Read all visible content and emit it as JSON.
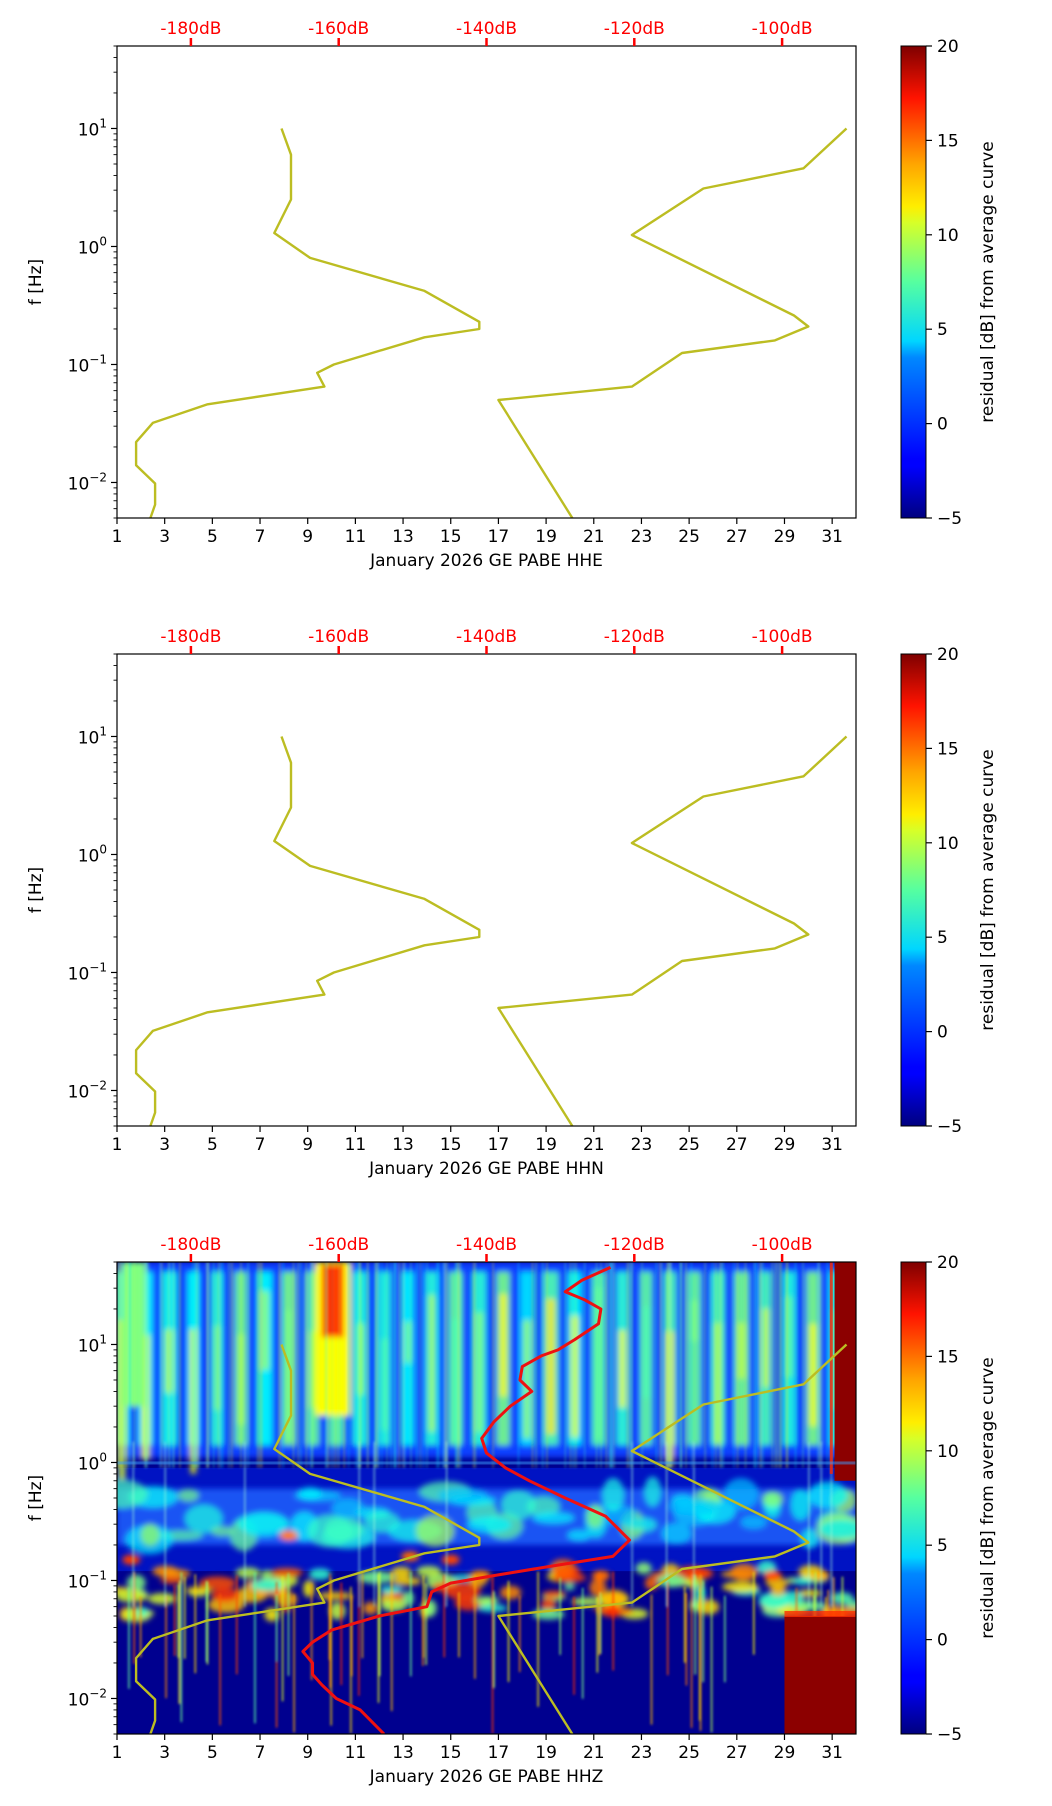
{
  "chart_data": [
    {
      "type": "line",
      "id": "hhe",
      "xlabel": "January 2026 GE PABE  HHE",
      "ylabel": "f [Hz]",
      "xlim": [
        1,
        32
      ],
      "ylim": [
        0.005,
        50
      ],
      "yscale": "log",
      "x_ticks": [
        "1",
        "3",
        "5",
        "7",
        "9",
        "11",
        "13",
        "15",
        "17",
        "19",
        "21",
        "23",
        "25",
        "27",
        "29",
        "31"
      ],
      "y_ticks": [
        {
          "mant": "10",
          "exp": "1",
          "v": 10
        },
        {
          "mant": "10",
          "exp": "0",
          "v": 1
        },
        {
          "mant": "10",
          "exp": "−1",
          "v": 0.1
        },
        {
          "mant": "10",
          "exp": "−2",
          "v": 0.01
        }
      ],
      "top_axis": {
        "color": "#ff0000",
        "ticks": [
          {
            "label": "-180dB",
            "x": 4.1
          },
          {
            "label": "-160dB",
            "x": 10.3
          },
          {
            "label": "-140dB",
            "x": 16.5
          },
          {
            "label": "-120dB",
            "x": 22.7
          },
          {
            "label": "-100dB",
            "x": 28.9
          }
        ]
      },
      "spectrogram": false,
      "colorbar": {
        "label": "residual [dB] from average curve",
        "range": [
          -5,
          20
        ],
        "ticks": [
          "20",
          "15",
          "10",
          "5",
          "0",
          "−5"
        ],
        "colormap": "jet"
      },
      "series": [
        {
          "color": "#bcbd22",
          "points": [
            [
              7.9,
              10
            ],
            [
              8.3,
              6
            ],
            [
              8.3,
              2.5
            ],
            [
              7.6,
              1.3
            ],
            [
              9.1,
              0.8
            ],
            [
              13.9,
              0.42
            ],
            [
              16.2,
              0.23
            ],
            [
              16.2,
              0.2
            ],
            [
              13.9,
              0.17
            ],
            [
              10.1,
              0.1
            ],
            [
              9.4,
              0.085
            ],
            [
              9.7,
              0.065
            ],
            [
              4.8,
              0.046
            ],
            [
              2.5,
              0.032
            ],
            [
              1.8,
              0.022
            ],
            [
              1.8,
              0.014
            ],
            [
              2.6,
              0.0098
            ],
            [
              2.6,
              0.0065
            ],
            [
              2.4,
              0.005
            ]
          ]
        },
        {
          "color": "#bcbd22",
          "points": [
            [
              31.6,
              10
            ],
            [
              29.8,
              4.6
            ],
            [
              25.6,
              3.1
            ],
            [
              22.6,
              1.25
            ],
            [
              29.4,
              0.26
            ],
            [
              30,
              0.21
            ],
            [
              28.6,
              0.16
            ],
            [
              24.7,
              0.125
            ],
            [
              22.6,
              0.065
            ],
            [
              17,
              0.05
            ],
            [
              20.1,
              0.005
            ]
          ]
        }
      ]
    },
    {
      "type": "line",
      "id": "hhn",
      "xlabel": "January 2026 GE PABE  HHN",
      "ylabel": "f [Hz]",
      "xlim": [
        1,
        32
      ],
      "ylim": [
        0.005,
        50
      ],
      "yscale": "log",
      "x_ticks": [
        "1",
        "3",
        "5",
        "7",
        "9",
        "11",
        "13",
        "15",
        "17",
        "19",
        "21",
        "23",
        "25",
        "27",
        "29",
        "31"
      ],
      "y_ticks": [
        {
          "mant": "10",
          "exp": "1",
          "v": 10
        },
        {
          "mant": "10",
          "exp": "0",
          "v": 1
        },
        {
          "mant": "10",
          "exp": "−1",
          "v": 0.1
        },
        {
          "mant": "10",
          "exp": "−2",
          "v": 0.01
        }
      ],
      "top_axis": {
        "color": "#ff0000",
        "ticks": [
          {
            "label": "-180dB",
            "x": 4.1
          },
          {
            "label": "-160dB",
            "x": 10.3
          },
          {
            "label": "-140dB",
            "x": 16.5
          },
          {
            "label": "-120dB",
            "x": 22.7
          },
          {
            "label": "-100dB",
            "x": 28.9
          }
        ]
      },
      "spectrogram": false,
      "colorbar": {
        "label": "residual [dB] from average curve",
        "range": [
          -5,
          20
        ],
        "ticks": [
          "20",
          "15",
          "10",
          "5",
          "0",
          "−5"
        ],
        "colormap": "jet"
      },
      "series": [
        {
          "color": "#bcbd22",
          "points": [
            [
              7.9,
              10
            ],
            [
              8.3,
              6
            ],
            [
              8.3,
              2.5
            ],
            [
              7.6,
              1.3
            ],
            [
              9.1,
              0.8
            ],
            [
              13.9,
              0.42
            ],
            [
              16.2,
              0.23
            ],
            [
              16.2,
              0.2
            ],
            [
              13.9,
              0.17
            ],
            [
              10.1,
              0.1
            ],
            [
              9.4,
              0.085
            ],
            [
              9.7,
              0.065
            ],
            [
              4.8,
              0.046
            ],
            [
              2.5,
              0.032
            ],
            [
              1.8,
              0.022
            ],
            [
              1.8,
              0.014
            ],
            [
              2.6,
              0.0098
            ],
            [
              2.6,
              0.0065
            ],
            [
              2.4,
              0.005
            ]
          ]
        },
        {
          "color": "#bcbd22",
          "points": [
            [
              31.6,
              10
            ],
            [
              29.8,
              4.6
            ],
            [
              25.6,
              3.1
            ],
            [
              22.6,
              1.25
            ],
            [
              29.4,
              0.26
            ],
            [
              30,
              0.21
            ],
            [
              28.6,
              0.16
            ],
            [
              24.7,
              0.125
            ],
            [
              22.6,
              0.065
            ],
            [
              17,
              0.05
            ],
            [
              20.1,
              0.005
            ]
          ]
        }
      ]
    },
    {
      "type": "heatmap",
      "id": "hhz",
      "xlabel": "January 2026 GE PABE  HHZ",
      "ylabel": "f [Hz]",
      "xlim": [
        1,
        32
      ],
      "ylim": [
        0.005,
        50
      ],
      "yscale": "log",
      "x_ticks": [
        "1",
        "3",
        "5",
        "7",
        "9",
        "11",
        "13",
        "15",
        "17",
        "19",
        "21",
        "23",
        "25",
        "27",
        "29",
        "31"
      ],
      "y_ticks": [
        {
          "mant": "10",
          "exp": "1",
          "v": 10
        },
        {
          "mant": "10",
          "exp": "0",
          "v": 1
        },
        {
          "mant": "10",
          "exp": "−1",
          "v": 0.1
        },
        {
          "mant": "10",
          "exp": "−2",
          "v": 0.01
        }
      ],
      "top_axis": {
        "color": "#ff0000",
        "ticks": [
          {
            "label": "-180dB",
            "x": 4.1
          },
          {
            "label": "-160dB",
            "x": 10.3
          },
          {
            "label": "-140dB",
            "x": 16.5
          },
          {
            "label": "-120dB",
            "x": 22.7
          },
          {
            "label": "-100dB",
            "x": 28.9
          }
        ]
      },
      "spectrogram": true,
      "colorbar": {
        "label": "residual [dB] from average curve",
        "range": [
          -5,
          20
        ],
        "ticks": [
          "20",
          "15",
          "10",
          "5",
          "0",
          "−5"
        ],
        "colormap": "jet"
      },
      "series": [
        {
          "color": "#bcbd22",
          "points": [
            [
              7.9,
              10
            ],
            [
              8.3,
              6
            ],
            [
              8.3,
              2.5
            ],
            [
              7.6,
              1.3
            ],
            [
              9.1,
              0.8
            ],
            [
              13.9,
              0.42
            ],
            [
              16.2,
              0.23
            ],
            [
              16.2,
              0.2
            ],
            [
              13.9,
              0.17
            ],
            [
              10.1,
              0.1
            ],
            [
              9.4,
              0.085
            ],
            [
              9.7,
              0.065
            ],
            [
              4.8,
              0.046
            ],
            [
              2.5,
              0.032
            ],
            [
              1.8,
              0.022
            ],
            [
              1.8,
              0.014
            ],
            [
              2.6,
              0.0098
            ],
            [
              2.6,
              0.0065
            ],
            [
              2.4,
              0.005
            ]
          ]
        },
        {
          "color": "#bcbd22",
          "points": [
            [
              31.6,
              10
            ],
            [
              29.8,
              4.6
            ],
            [
              25.6,
              3.1
            ],
            [
              22.6,
              1.25
            ],
            [
              29.4,
              0.26
            ],
            [
              30,
              0.21
            ],
            [
              28.6,
              0.16
            ],
            [
              24.7,
              0.125
            ],
            [
              22.6,
              0.065
            ],
            [
              17,
              0.05
            ],
            [
              20.1,
              0.005
            ]
          ]
        },
        {
          "color": "#ee1111",
          "points": [
            [
              21.7,
              45
            ],
            [
              20.5,
              35
            ],
            [
              19.8,
              28
            ],
            [
              20.6,
              24
            ],
            [
              21.3,
              20
            ],
            [
              21.2,
              15
            ],
            [
              20.2,
              11
            ],
            [
              19.5,
              9
            ],
            [
              18.8,
              8
            ],
            [
              18,
              6.5
            ],
            [
              17.9,
              5
            ],
            [
              18.4,
              4
            ],
            [
              17.5,
              3
            ],
            [
              16.8,
              2.2
            ],
            [
              16.3,
              1.6
            ],
            [
              16.5,
              1.2
            ],
            [
              17.3,
              0.9
            ],
            [
              18.3,
              0.7
            ],
            [
              19.8,
              0.5
            ],
            [
              21.5,
              0.35
            ],
            [
              22.5,
              0.22
            ],
            [
              21.8,
              0.16
            ],
            [
              19,
              0.13
            ],
            [
              16.8,
              0.11
            ],
            [
              15,
              0.095
            ],
            [
              14.2,
              0.08
            ],
            [
              14,
              0.06
            ],
            [
              12,
              0.05
            ],
            [
              10,
              0.038
            ],
            [
              9.2,
              0.03
            ],
            [
              8.8,
              0.025
            ],
            [
              9.2,
              0.02
            ],
            [
              9.2,
              0.016
            ],
            [
              9.6,
              0.013
            ],
            [
              10.2,
              0.01
            ],
            [
              11.2,
              0.008
            ],
            [
              12.2,
              0.005
            ]
          ]
        }
      ]
    }
  ]
}
